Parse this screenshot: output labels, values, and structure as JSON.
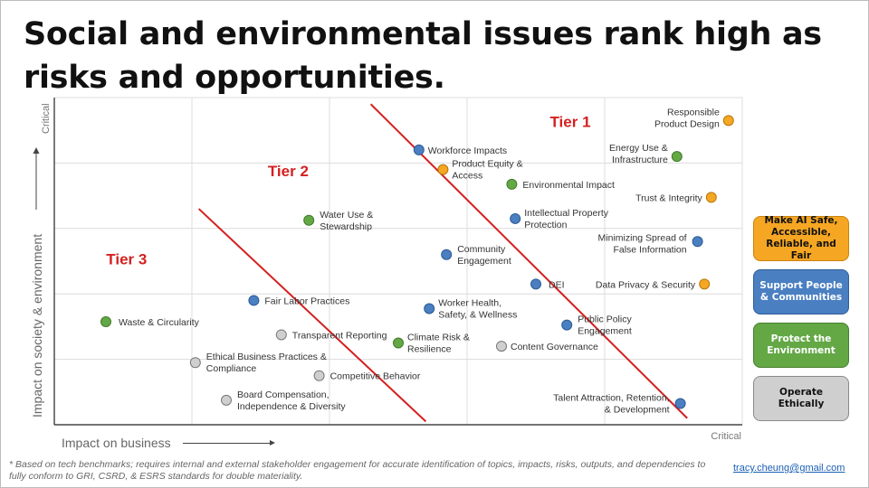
{
  "title": "Social and environmental issues rank high as risks and opportunities.",
  "chart_data": {
    "type": "scatter",
    "xlabel": "Impact on business",
    "ylabel": "Impact on society & environment",
    "x_end_label": "Critical",
    "y_end_label": "Critical",
    "xlim": [
      0,
      10
    ],
    "ylim": [
      0,
      10
    ],
    "colors": {
      "safe_ai": "#f5a623",
      "people": "#4a7fc1",
      "environment": "#63a845",
      "ethics": "#cfcfcf"
    },
    "tiers": [
      {
        "label": "Tier 1",
        "x": 7.5,
        "y": 9.1
      },
      {
        "label": "Tier 2",
        "x": 3.4,
        "y": 7.6
      },
      {
        "label": "Tier 3",
        "x": 1.05,
        "y": 4.9
      }
    ],
    "tier_lines": [
      {
        "x1": 2.1,
        "y1": 6.6,
        "x2": 5.4,
        "y2": 0.1
      },
      {
        "x1": 4.6,
        "y1": 9.8,
        "x2": 9.2,
        "y2": 0.2
      }
    ],
    "points": [
      {
        "label": "Responsible Product Design",
        "x": 9.8,
        "y": 9.3,
        "group": "safe_ai"
      },
      {
        "label": "Energy Use & Infrastructure",
        "x": 9.05,
        "y": 8.2,
        "group": "environment"
      },
      {
        "label": "Trust & Integrity",
        "x": 9.55,
        "y": 6.95,
        "group": "safe_ai"
      },
      {
        "label": "Minimizing Spread of False Information",
        "x": 9.35,
        "y": 5.6,
        "group": "people"
      },
      {
        "label": "Data Privacy & Security",
        "x": 9.45,
        "y": 4.3,
        "group": "safe_ai"
      },
      {
        "label": "Talent Attraction, Retention, & Development",
        "x": 9.1,
        "y": 0.65,
        "group": "people"
      },
      {
        "label": "Workforce Impacts",
        "x": 5.3,
        "y": 8.4,
        "group": "people"
      },
      {
        "label": "Product Equity & Access",
        "x": 5.65,
        "y": 7.8,
        "group": "safe_ai"
      },
      {
        "label": "Environmental Impact",
        "x": 6.65,
        "y": 7.35,
        "group": "environment"
      },
      {
        "label": "Intellectual Property Protection",
        "x": 6.7,
        "y": 6.3,
        "group": "people"
      },
      {
        "label": "Community Engagement",
        "x": 5.7,
        "y": 5.2,
        "group": "people"
      },
      {
        "label": "DEI",
        "x": 7.0,
        "y": 4.3,
        "group": "people"
      },
      {
        "label": "Worker Health, Safety, & Wellness",
        "x": 5.45,
        "y": 3.55,
        "group": "people"
      },
      {
        "label": "Public Policy Engagement",
        "x": 7.45,
        "y": 3.05,
        "group": "people"
      },
      {
        "label": "Climate Risk & Resilience",
        "x": 5.0,
        "y": 2.5,
        "group": "environment"
      },
      {
        "label": "Content Governance",
        "x": 6.5,
        "y": 2.4,
        "group": "ethics"
      },
      {
        "label": "Water Use & Stewardship",
        "x": 3.7,
        "y": 6.25,
        "group": "environment"
      },
      {
        "label": "Fair Labor Practices",
        "x": 2.9,
        "y": 3.8,
        "group": "people"
      },
      {
        "label": "Waste & Circularity",
        "x": 0.75,
        "y": 3.15,
        "group": "environment"
      },
      {
        "label": "Transparent Reporting",
        "x": 3.3,
        "y": 2.75,
        "group": "ethics"
      },
      {
        "label": "Ethical Business Practices & Compliance",
        "x": 2.05,
        "y": 1.9,
        "group": "ethics"
      },
      {
        "label": "Competitive Behavior",
        "x": 3.85,
        "y": 1.5,
        "group": "ethics"
      },
      {
        "label": "Board Compensation, Independence & Diversity",
        "x": 2.5,
        "y": 0.75,
        "group": "ethics"
      }
    ]
  },
  "legend": [
    {
      "label": "Make AI Safe, Accessible, Reliable, and Fair",
      "color": "#f5a623",
      "border": "#c98310"
    },
    {
      "label": "Support People & Communities",
      "color": "#4a7fc1",
      "border": "#2f5f99"
    },
    {
      "label": "Protect the Environment",
      "color": "#63a845",
      "border": "#467f2e"
    },
    {
      "label": "Operate Ethically",
      "color": "#cfcfcf",
      "border": "#8a8a8a"
    }
  ],
  "footnote": "* Based on tech benchmarks; requires internal and external stakeholder engagement for accurate identification of topics, impacts, risks, outputs, and dependencies to fully conform to GRI, CSRD, & ESRS standards for double materiality.",
  "email": "tracy.cheung@gmail.com"
}
